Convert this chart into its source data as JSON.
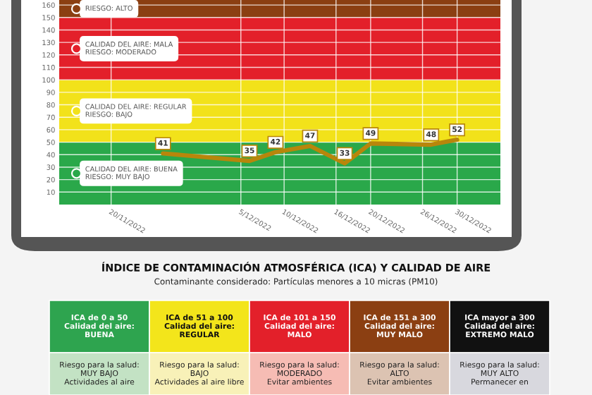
{
  "chart_data": {
    "type": "line",
    "x": [
      "2022-11-26",
      "2022-12-06",
      "2022-12-09",
      "2022-12-13",
      "2022-12-17",
      "2022-12-20",
      "2022-12-27",
      "2022-12-30"
    ],
    "series": [
      {
        "color": "#b8860b",
        "values": [
          41,
          35,
          42,
          47,
          33,
          49,
          48,
          52
        ]
      }
    ],
    "data_labels": true,
    "xlim": [
      "2022-11-14",
      "2023-01-04"
    ],
    "xticks": [
      {
        "value": "2022-11-20",
        "label": "20/11/2022"
      },
      {
        "value": "2022-12-05",
        "label": "5/12/2022"
      },
      {
        "value": "2022-12-10",
        "label": "10/12/2022"
      },
      {
        "value": "2022-12-16",
        "label": "16/12/2022"
      },
      {
        "value": "2022-12-20",
        "label": "20/12/2022"
      },
      {
        "value": "2022-12-26",
        "label": "26/12/2022"
      },
      {
        "value": "2022-12-30",
        "label": "30/12/2022"
      }
    ],
    "ylim": [
      0,
      164
    ],
    "yticks": [
      10,
      20,
      30,
      40,
      50,
      60,
      70,
      80,
      90,
      100,
      110,
      120,
      130,
      140,
      150,
      160
    ],
    "grid": true,
    "marker": "none",
    "bands": [
      {
        "axis": "y",
        "from": 0,
        "to": 50,
        "color": "#2aa84a",
        "label": "CALIDAD DEL AIRE: BUENA\nRIESGO: MUY BAJO"
      },
      {
        "axis": "y",
        "from": 50,
        "to": 100,
        "color": "#f2e21a",
        "label": "CALIDAD DEL AIRE: REGULAR\nRIESGO: BAJO"
      },
      {
        "axis": "y",
        "from": 100,
        "to": 150,
        "color": "#e3202a",
        "label": "CALIDAD DEL AIRE: MALA\nRIESGO: MODERADO"
      },
      {
        "axis": "y",
        "from": 150,
        "to": 164,
        "color": "#8b3f12",
        "label": "RIESGO: ALTO"
      }
    ],
    "title": "ÍNDICE DE CONTAMINACIÓN ATMOSFÉRICA (ICA) Y CALIDAD DE AIRE",
    "subtitle": "Contaminante considerado: Partículas menores a 10 micras (PM10)",
    "annotations": [
      "ICA de 0 a 50\nCalidad del aire:\nBUENA",
      "ICA de 51 a 100\nCalidad del aire:\nREGULAR",
      "ICA de 101 a 150\nCalidad del aire:\nMALO",
      "ICA de 151 a 300\nCalidad del aire:\nMUY MALO",
      "ICA mayor a 300\nCalidad del aire:\nEXTREMO MALO",
      "Riesgo para la salud:\nMUY BAJO\nActividades al aire",
      "Riesgo para la salud:\nBAJO\nActividades al aire libre",
      "Riesgo para la salud:\nMODERADO\nEvitar ambientes",
      "Riesgo para la salud:\nALTO\nEvitar ambientes",
      "Riesgo para la salud:\nMUY ALTO\nPermanecer en"
    ]
  }
}
